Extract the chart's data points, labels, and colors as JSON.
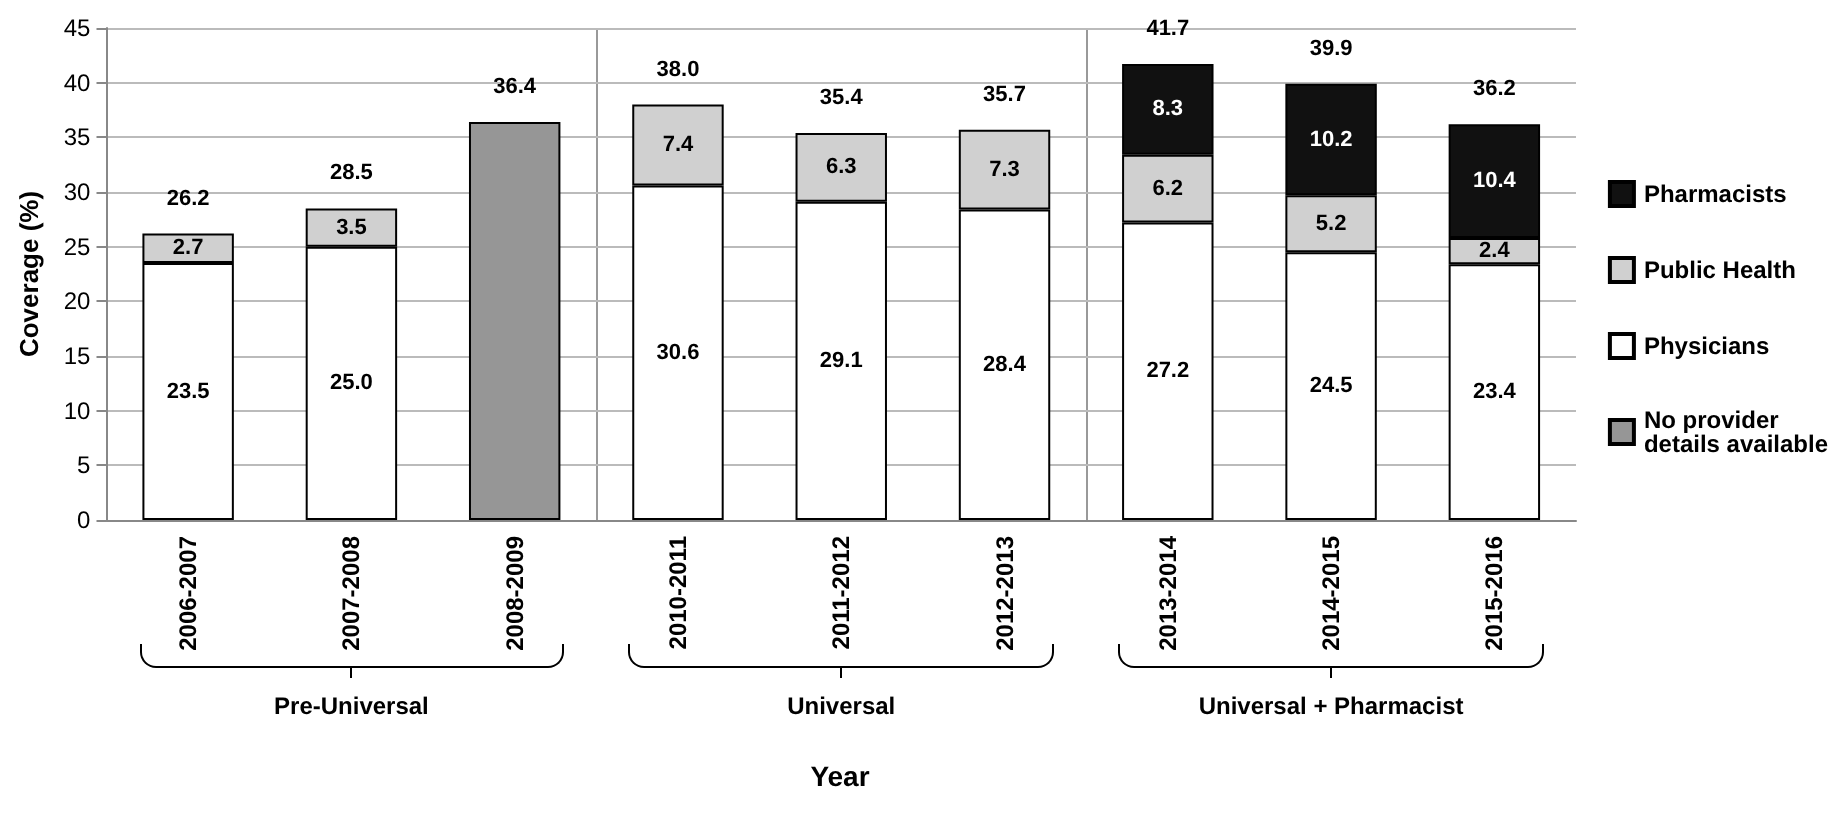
{
  "chart_data": {
    "type": "bar",
    "stacked": true,
    "xlabel": "Year",
    "ylabel": "Coverage (%)",
    "categories": [
      "2006-2007",
      "2007-2008",
      "2008-2009",
      "2010-2011",
      "2011-2012",
      "2012-2013",
      "2013-2014",
      "2014-2015",
      "2015-2016"
    ],
    "series": [
      {
        "name": "No provider details available",
        "color": "#969696",
        "values": [
          null,
          null,
          36.4,
          null,
          null,
          null,
          null,
          null,
          null
        ]
      },
      {
        "name": "Physicians",
        "color": "#ffffff",
        "values": [
          23.5,
          25.0,
          null,
          30.6,
          29.1,
          28.4,
          27.2,
          24.5,
          23.4
        ],
        "value_labels": [
          "23.5",
          "25.0",
          null,
          "30.6",
          "29.1",
          "28.4",
          "27.2",
          "24.5",
          "23.4"
        ]
      },
      {
        "name": "Public Health",
        "color": "#d0d0d0",
        "values": [
          2.7,
          3.5,
          null,
          7.4,
          6.3,
          7.3,
          6.2,
          5.2,
          2.4
        ],
        "value_labels": [
          "2.7",
          "3.5",
          null,
          "7.4",
          "6.3",
          "7.3",
          "6.2",
          "5.2",
          "2.4"
        ]
      },
      {
        "name": "Pharmacists",
        "color": "#111111",
        "values": [
          null,
          null,
          null,
          null,
          null,
          null,
          8.3,
          10.2,
          10.4
        ],
        "value_labels": [
          null,
          null,
          null,
          null,
          null,
          null,
          "8.3",
          "10.2",
          "10.4"
        ]
      }
    ],
    "totals": [
      "26.2",
      "28.5",
      "36.4",
      "38.0",
      "35.4",
      "35.7",
      "41.7",
      "39.9",
      "36.2"
    ],
    "ylim": [
      0,
      45
    ],
    "yticks": [
      0,
      5,
      10,
      15,
      20,
      25,
      30,
      35,
      40,
      45
    ],
    "grid": "y",
    "legend": "right",
    "annotations": [
      "Pre-Universal",
      "Universal",
      "Universal + Pharmacist"
    ]
  }
}
